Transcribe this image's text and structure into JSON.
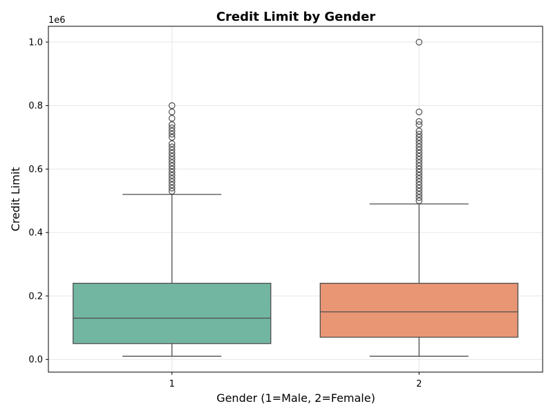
{
  "chart_data": {
    "type": "box",
    "title": "Credit Limit by Gender",
    "xlabel": "Gender (1=Male, 2=Female)",
    "ylabel": "Credit Limit",
    "y_offset_label": "1e6",
    "ylim": [
      -40000,
      1050000
    ],
    "y_ticks": [
      0,
      200000,
      400000,
      600000,
      800000,
      1000000
    ],
    "y_tick_labels": [
      "0.0",
      "0.2",
      "0.4",
      "0.6",
      "0.8",
      "1.0"
    ],
    "grid": true,
    "categories": [
      "1",
      "2"
    ],
    "boxes": [
      {
        "category": "1",
        "color": "#72b6a1",
        "whisker_low": 10000,
        "q1": 50000,
        "median": 130000,
        "q3": 240000,
        "whisker_high": 520000,
        "outliers": [
          530000,
          540000,
          550000,
          560000,
          570000,
          580000,
          590000,
          600000,
          610000,
          620000,
          630000,
          640000,
          650000,
          660000,
          670000,
          680000,
          700000,
          710000,
          720000,
          730000,
          740000,
          760000,
          780000,
          800000
        ]
      },
      {
        "category": "2",
        "color": "#e99675",
        "whisker_low": 10000,
        "q1": 70000,
        "median": 150000,
        "q3": 240000,
        "whisker_high": 490000,
        "outliers": [
          500000,
          510000,
          520000,
          530000,
          540000,
          550000,
          560000,
          570000,
          580000,
          590000,
          600000,
          610000,
          620000,
          630000,
          640000,
          650000,
          660000,
          670000,
          680000,
          690000,
          700000,
          710000,
          720000,
          740000,
          750000,
          780000,
          1000000
        ]
      }
    ]
  }
}
